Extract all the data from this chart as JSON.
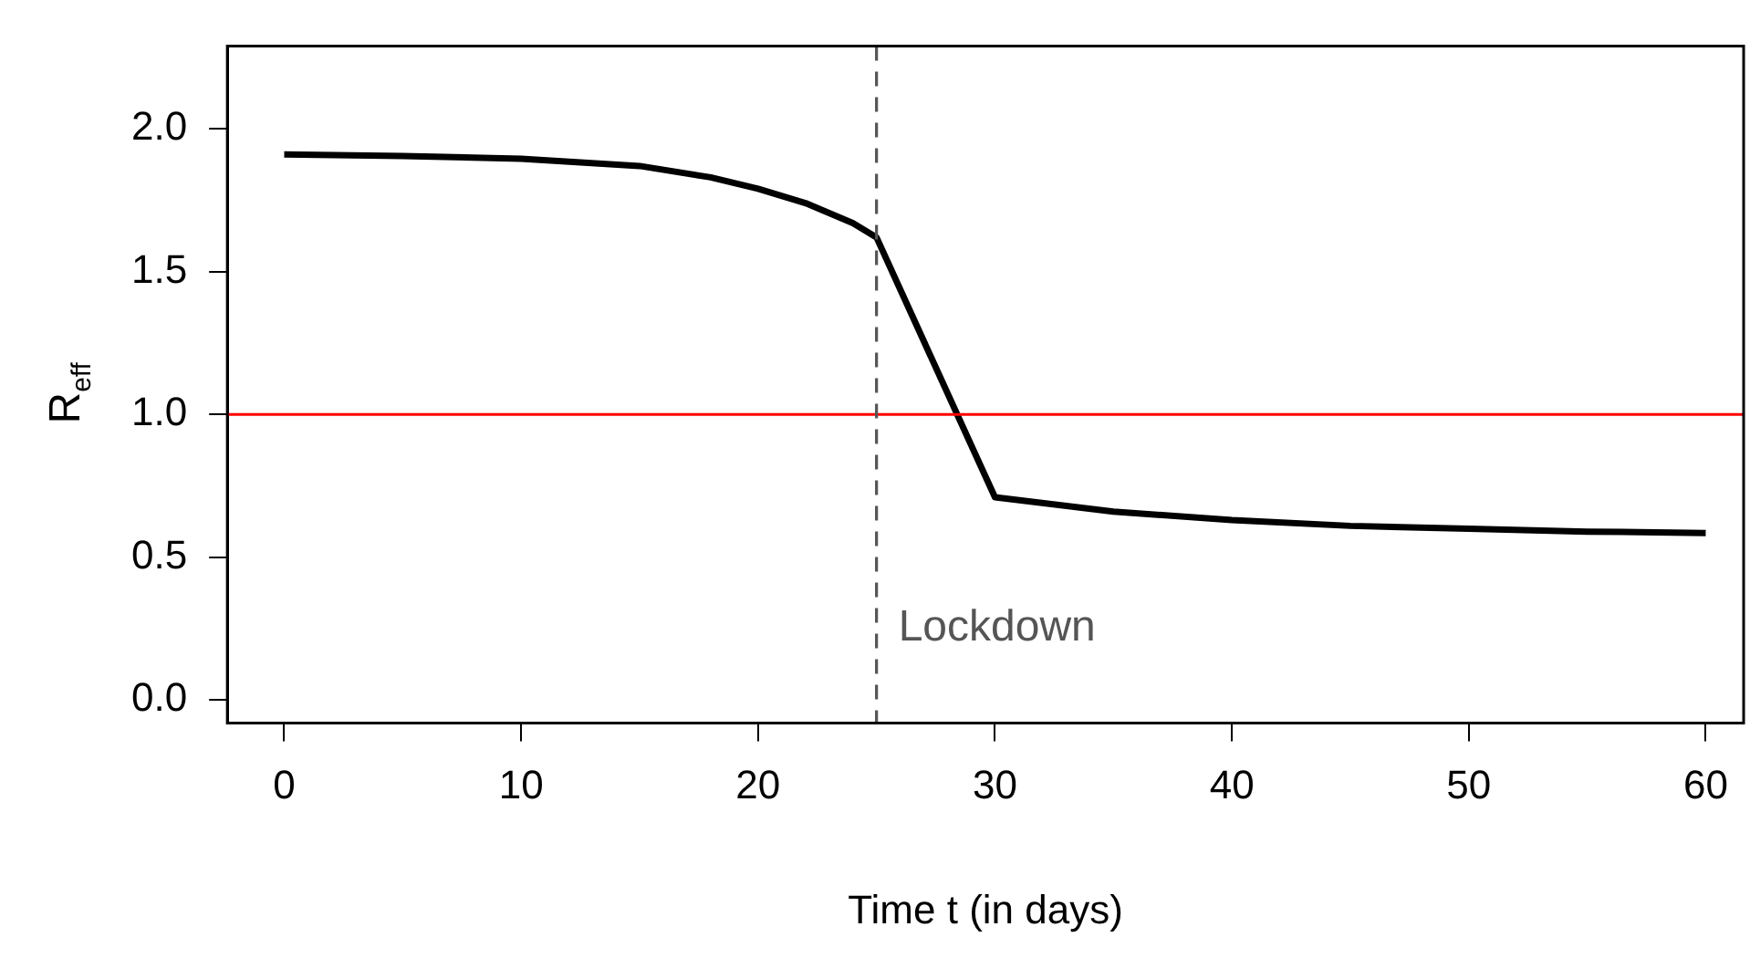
{
  "chart_data": {
    "type": "line",
    "xlabel": "Time t (in days)",
    "ylabel": "R$_{eff}$",
    "x": [
      0,
      5,
      10,
      15,
      18,
      20,
      22,
      24,
      25,
      30,
      35,
      40,
      45,
      50,
      55,
      60
    ],
    "series": [
      {
        "color": "#000000",
        "values": [
          1.91,
          1.905,
          1.895,
          1.87,
          1.83,
          1.79,
          1.74,
          1.67,
          1.62,
          0.71,
          0.66,
          0.63,
          0.61,
          0.6,
          0.59,
          0.585
        ]
      }
    ],
    "xlim": [
      -2.4,
      61.6
    ],
    "ylim": [
      -0.08,
      2.29
    ],
    "xticks": [
      0,
      10,
      20,
      30,
      40,
      50,
      60
    ],
    "yticks": [
      {
        "value": 0,
        "label": "0.0"
      },
      {
        "value": 0.5,
        "label": "0.5"
      },
      {
        "value": 1,
        "label": "1.0"
      },
      {
        "value": 1.5,
        "label": "1.5"
      },
      {
        "value": 2,
        "label": "2.0"
      }
    ],
    "ref_lines": [
      {
        "axis": "y",
        "value": 1,
        "color": "#ff0000",
        "line_style": "solid"
      },
      {
        "axis": "x",
        "value": 25,
        "label": "Lockdown",
        "color": "#555555",
        "line_style": "dashed"
      }
    ],
    "grid": false,
    "legend": false,
    "marker": "none",
    "line_style": "solid"
  }
}
